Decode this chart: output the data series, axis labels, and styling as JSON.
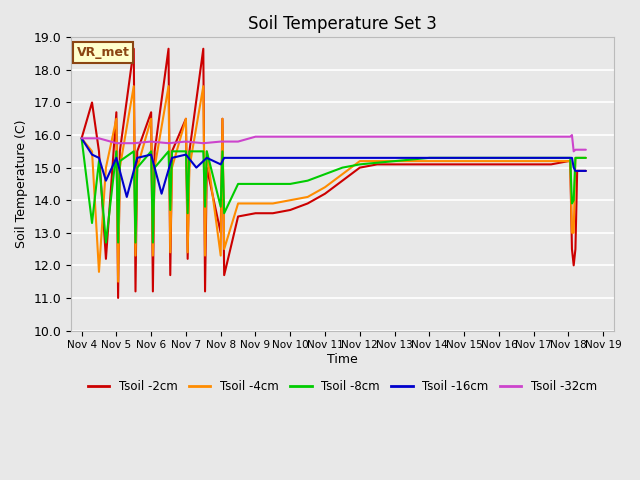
{
  "title": "Soil Temperature Set 3",
  "xlabel": "Time",
  "ylabel": "Soil Temperature (C)",
  "ylim": [
    10.0,
    19.0
  ],
  "yticks": [
    10.0,
    11.0,
    12.0,
    13.0,
    14.0,
    15.0,
    16.0,
    17.0,
    18.0,
    19.0
  ],
  "xtick_labels": [
    "Nov 4",
    "Nov 5",
    "Nov 6",
    "Nov 7",
    "Nov 8",
    "Nov 9",
    "Nov 10",
    "Nov 11",
    "Nov 12",
    "Nov 13",
    "Nov 14",
    "Nov 15",
    "Nov 16",
    "Nov 17",
    "Nov 18",
    "Nov 19"
  ],
  "background_color": "#e8e8e8",
  "plot_bg_color": "#e8e8e8",
  "annotation_text": "VR_met",
  "annotation_bg": "#ffffcc",
  "annotation_border": "#8b4513",
  "series": {
    "Tsoil -2cm": {
      "color": "#cc0000",
      "x": [
        0,
        0.3,
        0.5,
        0.7,
        1.0,
        1.05,
        1.1,
        1.5,
        1.55,
        1.6,
        2.0,
        2.05,
        2.1,
        2.5,
        2.55,
        2.6,
        3.0,
        3.05,
        3.1,
        3.5,
        3.55,
        3.6,
        4.0,
        4.05,
        4.1,
        4.5,
        5.0,
        5.5,
        6.0,
        6.5,
        7.0,
        7.5,
        8.0,
        8.5,
        9.0,
        9.5,
        10.0,
        10.5,
        11.0,
        11.5,
        12.0,
        12.5,
        13.0,
        13.5,
        14.0,
        14.05,
        14.1,
        14.15,
        14.2,
        14.25,
        14.3,
        14.35,
        14.4,
        14.5
      ],
      "y": [
        15.9,
        17.0,
        15.5,
        12.2,
        16.7,
        11.0,
        15.5,
        18.65,
        11.2,
        15.5,
        16.7,
        11.2,
        15.5,
        18.65,
        11.7,
        15.5,
        16.5,
        12.2,
        15.5,
        18.65,
        11.2,
        15.0,
        13.0,
        16.5,
        11.7,
        13.5,
        13.6,
        13.6,
        13.7,
        13.9,
        14.2,
        14.6,
        15.0,
        15.1,
        15.1,
        15.1,
        15.1,
        15.1,
        15.1,
        15.1,
        15.1,
        15.1,
        15.1,
        15.1,
        15.2,
        15.2,
        12.5,
        12.0,
        12.5,
        14.9,
        14.9,
        14.9,
        14.9,
        14.9
      ]
    },
    "Tsoil -4cm": {
      "color": "#ff8c00",
      "x": [
        0,
        0.3,
        0.5,
        0.7,
        1.0,
        1.05,
        1.1,
        1.5,
        1.55,
        1.6,
        2.0,
        2.05,
        2.1,
        2.5,
        2.55,
        2.6,
        3.0,
        3.05,
        3.1,
        3.5,
        3.55,
        3.6,
        4.0,
        4.05,
        4.1,
        4.5,
        5.0,
        5.5,
        6.0,
        6.5,
        7.0,
        7.5,
        8.0,
        8.5,
        9.0,
        9.5,
        10.0,
        10.5,
        11.0,
        11.5,
        12.0,
        12.5,
        13.0,
        13.5,
        14.0,
        14.05,
        14.1,
        14.15,
        14.2,
        14.25,
        14.3,
        14.35,
        14.4,
        14.5
      ],
      "y": [
        15.9,
        15.5,
        11.8,
        15.0,
        16.5,
        11.5,
        15.0,
        17.5,
        12.3,
        15.0,
        16.5,
        12.3,
        15.0,
        17.5,
        12.4,
        15.0,
        16.5,
        12.4,
        15.0,
        17.5,
        12.3,
        15.5,
        12.3,
        16.5,
        12.5,
        13.9,
        13.9,
        13.9,
        14.0,
        14.1,
        14.4,
        14.8,
        15.2,
        15.2,
        15.2,
        15.2,
        15.2,
        15.2,
        15.2,
        15.2,
        15.2,
        15.2,
        15.2,
        15.2,
        15.2,
        15.2,
        13.0,
        13.0,
        15.3,
        15.3,
        15.3,
        15.3,
        15.3,
        15.3
      ]
    },
    "Tsoil -8cm": {
      "color": "#00cc00",
      "x": [
        0,
        0.3,
        0.5,
        0.7,
        1.0,
        1.05,
        1.1,
        1.5,
        1.55,
        1.6,
        2.0,
        2.05,
        2.1,
        2.5,
        2.55,
        2.6,
        3.0,
        3.05,
        3.1,
        3.5,
        3.55,
        3.6,
        4.0,
        4.05,
        4.1,
        4.5,
        5.0,
        5.5,
        6.0,
        6.5,
        7.0,
        7.5,
        8.0,
        9.0,
        10.0,
        11.0,
        12.0,
        13.0,
        14.0,
        14.05,
        14.1,
        14.15,
        14.2,
        14.3,
        14.4,
        14.5
      ],
      "y": [
        15.9,
        13.3,
        15.2,
        12.7,
        15.5,
        12.7,
        15.2,
        15.5,
        12.7,
        15.0,
        15.5,
        12.7,
        15.0,
        15.5,
        13.7,
        15.5,
        15.5,
        13.6,
        15.5,
        15.5,
        13.8,
        15.5,
        13.8,
        15.5,
        13.6,
        14.5,
        14.5,
        14.5,
        14.5,
        14.6,
        14.8,
        15.0,
        15.1,
        15.2,
        15.3,
        15.3,
        15.3,
        15.3,
        15.3,
        15.3,
        13.9,
        14.0,
        15.3,
        15.3,
        15.3,
        15.3
      ]
    },
    "Tsoil -16cm": {
      "color": "#0000cc",
      "x": [
        0,
        0.3,
        0.5,
        0.7,
        1.0,
        1.3,
        1.6,
        2.0,
        2.3,
        2.6,
        3.0,
        3.3,
        3.6,
        4.0,
        4.1,
        4.2,
        4.5,
        5.0,
        6.0,
        7.0,
        8.0,
        9.0,
        10.0,
        11.0,
        12.0,
        13.0,
        14.0,
        14.05,
        14.1,
        14.15,
        14.2,
        14.3,
        14.4,
        14.5
      ],
      "y": [
        15.9,
        15.4,
        15.3,
        14.6,
        15.3,
        14.1,
        15.3,
        15.4,
        14.2,
        15.3,
        15.4,
        15.0,
        15.3,
        15.1,
        15.3,
        15.3,
        15.3,
        15.3,
        15.3,
        15.3,
        15.3,
        15.3,
        15.3,
        15.3,
        15.3,
        15.3,
        15.3,
        15.3,
        15.3,
        15.0,
        14.9,
        14.9,
        14.9,
        14.9
      ]
    },
    "Tsoil -32cm": {
      "color": "#cc44cc",
      "x": [
        0,
        0.5,
        1.0,
        1.5,
        2.0,
        2.5,
        3.0,
        3.5,
        4.0,
        4.5,
        5.0,
        6.0,
        7.0,
        8.0,
        9.0,
        10.0,
        11.0,
        12.0,
        13.0,
        14.0,
        14.05,
        14.1,
        14.15,
        14.2,
        14.3,
        14.4,
        14.5
      ],
      "y": [
        15.9,
        15.9,
        15.75,
        15.75,
        15.8,
        15.75,
        15.8,
        15.75,
        15.8,
        15.8,
        15.95,
        15.95,
        15.95,
        15.95,
        15.95,
        15.95,
        15.95,
        15.95,
        15.95,
        15.95,
        15.95,
        16.0,
        15.5,
        15.55,
        15.55,
        15.55,
        15.55
      ]
    }
  },
  "legend_entries": [
    "Tsoil -2cm",
    "Tsoil -4cm",
    "Tsoil -8cm",
    "Tsoil -16cm",
    "Tsoil -32cm"
  ],
  "legend_colors": [
    "#cc0000",
    "#ff8c00",
    "#00cc00",
    "#0000cc",
    "#cc44cc"
  ]
}
